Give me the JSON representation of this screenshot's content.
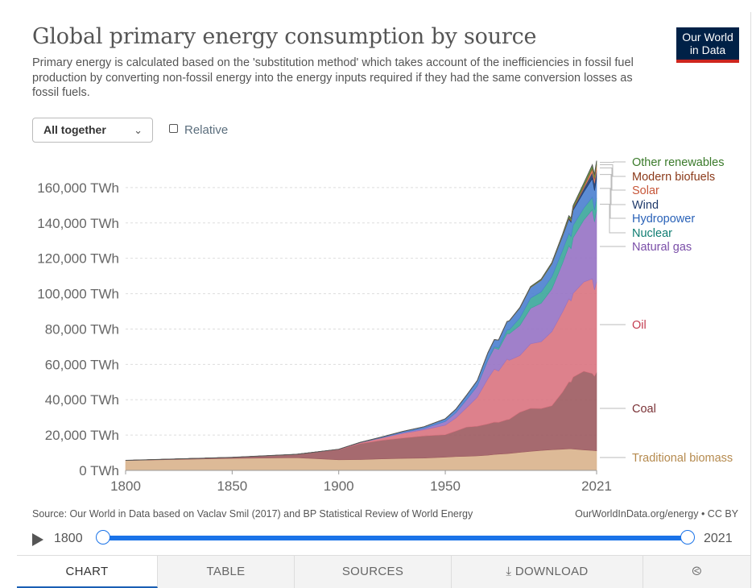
{
  "header": {
    "title": "Global primary energy consumption by source",
    "subtitle": "Primary energy is calculated based on the 'substitution method' which takes account of the inefficiencies in fossil fuel production by converting non-fossil energy into the energy inputs required if they had the same conversion losses as fossil fuels.",
    "logo_line1": "Our World",
    "logo_line2": "in Data"
  },
  "controls": {
    "stack_mode": "All together",
    "relative_label": "Relative"
  },
  "footer": {
    "source": "Source: Our World in Data based on Vaclav Smil (2017) and BP Statistical Review of World Energy",
    "url": "OurWorldInData.org/energy • CC BY"
  },
  "timeline": {
    "start": "1800",
    "end": "2021"
  },
  "tabs": [
    "CHART",
    "TABLE",
    "SOURCES",
    "DOWNLOAD"
  ],
  "colors": {
    "traditional_biomass": "#d9b38c",
    "coal": "#9c5a5f",
    "oil": "#d9737f",
    "natural_gas": "#9672c4",
    "nuclear": "#3aa69a",
    "hydropower": "#4a7fcf",
    "wind": "#1f3a6b",
    "solar": "#e07b5a",
    "modern_biofuels": "#a0522d",
    "other_renewables": "#5a9a3a"
  },
  "chart_data": {
    "type": "area",
    "stacked": true,
    "ylim": [
      0,
      175000
    ],
    "xlim": [
      1800,
      2021
    ],
    "yticks": [
      0,
      20000,
      40000,
      60000,
      80000,
      100000,
      120000,
      140000,
      160000
    ],
    "ytick_labels": [
      "0 TWh",
      "20,000 TWh",
      "40,000 TWh",
      "60,000 TWh",
      "80,000 TWh",
      "100,000 TWh",
      "120,000 TWh",
      "140,000 TWh",
      "160,000 TWh"
    ],
    "xticks": [
      1800,
      1850,
      1900,
      1950,
      2021
    ],
    "xtick_labels": [
      "1800",
      "1850",
      "1900",
      "1950",
      "2021"
    ],
    "grid": true,
    "legend": "right, inline labels",
    "x": [
      1800,
      1850,
      1880,
      1900,
      1910,
      1920,
      1930,
      1940,
      1950,
      1955,
      1960,
      1965,
      1970,
      1973,
      1975,
      1979,
      1980,
      1985,
      1990,
      1995,
      2000,
      2005,
      2008,
      2009,
      2010,
      2015,
      2019,
      2020,
      2021
    ],
    "series": [
      {
        "name": "Traditional biomass",
        "color_key": "traditional_biomass",
        "values": [
          5600,
          6800,
          7200,
          6000,
          6100,
          6500,
          6800,
          7000,
          7500,
          7800,
          8000,
          8200,
          8600,
          9000,
          9200,
          9500,
          9600,
          10200,
          10800,
          11300,
          11700,
          12000,
          12200,
          12200,
          12100,
          11600,
          11300,
          11200,
          11100
        ]
      },
      {
        "name": "Coal",
        "color_key": "coal",
        "values": [
          100,
          600,
          1900,
          5700,
          9000,
          10500,
          11500,
          12500,
          12700,
          14500,
          16500,
          16800,
          17700,
          18300,
          18000,
          19200,
          19300,
          22700,
          24300,
          23700,
          24900,
          32300,
          37900,
          37800,
          40700,
          44500,
          43500,
          42100,
          44400
        ]
      },
      {
        "name": "Oil",
        "color_key": "oil",
        "values": [
          0,
          0,
          0,
          200,
          500,
          1300,
          2600,
          3500,
          5400,
          7400,
          11000,
          16400,
          25600,
          30000,
          29000,
          34300,
          33400,
          32100,
          36500,
          37800,
          41900,
          45300,
          46900,
          45900,
          47400,
          50500,
          53600,
          48800,
          51200
        ]
      },
      {
        "name": "Natural gas",
        "color_key": "natural_gas",
        "values": [
          0,
          0,
          0,
          60,
          150,
          250,
          550,
          800,
          2100,
          3000,
          4500,
          6300,
          10500,
          12000,
          12200,
          14500,
          15000,
          17000,
          20100,
          21800,
          24100,
          27600,
          30100,
          29500,
          31500,
          35100,
          39100,
          38500,
          40400
        ]
      },
      {
        "name": "Nuclear",
        "color_key": "nuclear",
        "values": [
          0,
          0,
          0,
          0,
          0,
          0,
          0,
          0,
          0,
          0,
          0,
          50,
          300,
          600,
          1100,
          2000,
          2200,
          4300,
          5800,
          6400,
          7000,
          7300,
          7000,
          6900,
          7000,
          6700,
          7100,
          6800,
          7000
        ]
      },
      {
        "name": "Hydropower",
        "color_key": "hydropower",
        "values": [
          0,
          0,
          0,
          0,
          100,
          300,
          600,
          900,
          1500,
          2000,
          2600,
          3100,
          3900,
          4100,
          4300,
          4800,
          5000,
          5600,
          6000,
          6600,
          7200,
          7800,
          8000,
          8000,
          8500,
          9100,
          10500,
          10900,
          10900
        ]
      },
      {
        "name": "Wind",
        "color_key": "wind",
        "values": [
          0,
          0,
          0,
          0,
          0,
          0,
          0,
          0,
          0,
          0,
          0,
          0,
          0,
          0,
          0,
          0,
          0,
          0,
          10,
          20,
          80,
          300,
          600,
          800,
          900,
          2200,
          3500,
          4200,
          4800
        ]
      },
      {
        "name": "Solar",
        "color_key": "solar",
        "values": [
          0,
          0,
          0,
          0,
          0,
          0,
          0,
          0,
          0,
          0,
          0,
          0,
          0,
          0,
          0,
          0,
          0,
          0,
          0,
          0,
          5,
          10,
          30,
          50,
          80,
          700,
          1800,
          2200,
          2700
        ]
      },
      {
        "name": "Modern biofuels",
        "color_key": "modern_biofuels",
        "values": [
          0,
          0,
          0,
          0,
          0,
          0,
          0,
          0,
          0,
          0,
          0,
          0,
          0,
          0,
          0,
          0,
          30,
          80,
          120,
          140,
          160,
          250,
          450,
          500,
          540,
          680,
          850,
          820,
          880
        ]
      },
      {
        "name": "Other renewables",
        "color_key": "other_renewables",
        "values": [
          0,
          0,
          0,
          0,
          0,
          0,
          0,
          0,
          0,
          0,
          0,
          0,
          0,
          0,
          0,
          0,
          100,
          200,
          350,
          450,
          550,
          700,
          900,
          1000,
          1100,
          1400,
          1600,
          1700,
          1800
        ]
      }
    ]
  }
}
